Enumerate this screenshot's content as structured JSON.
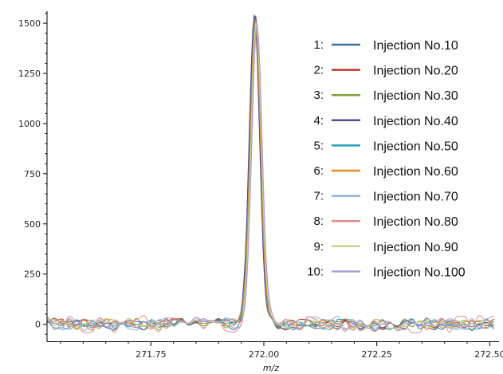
{
  "chart_data": {
    "type": "line",
    "title": "",
    "xlabel": "m/z",
    "ylabel": "",
    "xlim": [
      271.52,
      272.51
    ],
    "ylim": [
      -85,
      1560
    ],
    "x_ticks": [
      {
        "value": 271.75,
        "label": "271.75"
      },
      {
        "value": 272.0,
        "label": "272.00"
      },
      {
        "value": 272.25,
        "label": "272.25"
      },
      {
        "value": 272.5,
        "label": "272.50"
      }
    ],
    "y_ticks": [
      {
        "value": 0,
        "label": "0"
      },
      {
        "value": 250,
        "label": "250"
      },
      {
        "value": 500,
        "label": "500"
      },
      {
        "value": 750,
        "label": "750"
      },
      {
        "value": 1000,
        "label": "1000"
      },
      {
        "value": 1250,
        "label": "1250"
      },
      {
        "value": 1500,
        "label": "1500"
      }
    ],
    "grid": false,
    "legend_position": "right",
    "peak_center": 271.98,
    "series": [
      {
        "index": "1:",
        "name": "Injection No.10",
        "color": "#3a6ea5",
        "peak": 1545,
        "shift": 0.0,
        "noise": 32
      },
      {
        "index": "2:",
        "name": "Injection No.20",
        "color": "#c0392b",
        "peak": 1535,
        "shift": 0.002,
        "noise": 30
      },
      {
        "index": "3:",
        "name": "Injection No.30",
        "color": "#7f9f3a",
        "peak": 1525,
        "shift": 0.001,
        "noise": 30
      },
      {
        "index": "4:",
        "name": "Injection No.40",
        "color": "#5b4a8b",
        "peak": 1540,
        "shift": -0.001,
        "noise": 28
      },
      {
        "index": "5:",
        "name": "Injection No.50",
        "color": "#2aa0b8",
        "peak": 1520,
        "shift": 0.002,
        "noise": 28
      },
      {
        "index": "6:",
        "name": "Injection No.60",
        "color": "#e08a2c",
        "peak": 1515,
        "shift": 0.001,
        "noise": 28
      },
      {
        "index": "7:",
        "name": "Injection No.70",
        "color": "#8fb3d9",
        "peak": 1510,
        "shift": 0.003,
        "noise": 30
      },
      {
        "index": "8:",
        "name": "Injection No.80",
        "color": "#e0908c",
        "peak": 1505,
        "shift": 0.004,
        "noise": 45
      },
      {
        "index": "9:",
        "name": "Injection No.90",
        "color": "#c5d68e",
        "peak": 1500,
        "shift": 0.003,
        "noise": 30
      },
      {
        "index": "10:",
        "name": "Injection No.100",
        "color": "#a99fd6",
        "peak": 1495,
        "shift": 0.005,
        "noise": 40
      }
    ]
  }
}
